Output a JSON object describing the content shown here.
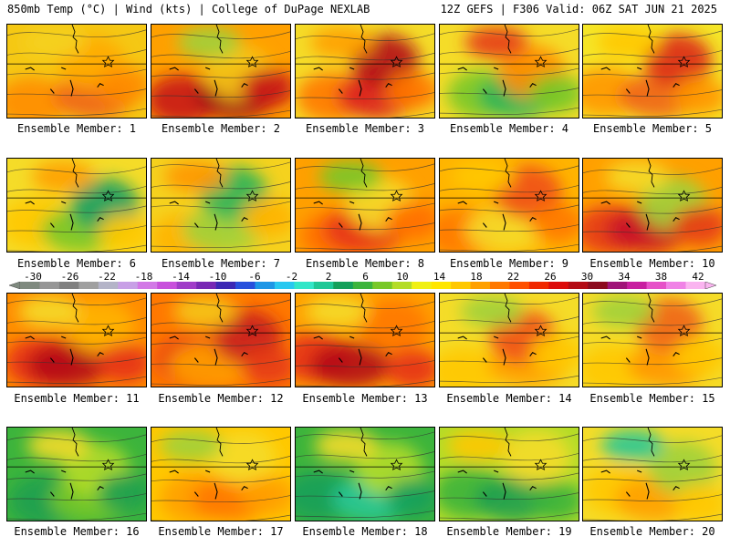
{
  "header": {
    "left": "850mb Temp (°C) | Wind (kts) | College of DuPage NEXLAB",
    "right": "12Z GEFS | F306 Valid: 06Z SAT JUN 21 2025"
  },
  "colorbar": {
    "labels": [
      "-30",
      "-26",
      "-22",
      "-18",
      "-14",
      "-10",
      "-6",
      "-2",
      "2",
      "6",
      "10",
      "14",
      "18",
      "22",
      "26",
      "30",
      "34",
      "38",
      "42"
    ],
    "colors": [
      "#7f8a7f",
      "#969696",
      "#808080",
      "#a0a0a0",
      "#b4b4c8",
      "#c8a0e6",
      "#d278e6",
      "#c850dc",
      "#a03cc8",
      "#7828b4",
      "#3c28b4",
      "#2850dc",
      "#1e96e6",
      "#28c8f0",
      "#32e6c8",
      "#1ec896",
      "#14a05a",
      "#3cb43c",
      "#78c828",
      "#b4dc28",
      "#f0f014",
      "#ffe600",
      "#ffc800",
      "#ffa000",
      "#ff7800",
      "#ff5000",
      "#f02800",
      "#dc0a0a",
      "#b40a14",
      "#8c0a1e",
      "#a01478",
      "#c81ea0",
      "#e650c8",
      "#f082e6",
      "#fab4f0"
    ]
  },
  "members": [
    {
      "caption": "Ensemble Member: 1",
      "palette": [
        "#f5c814",
        "#ff8c00",
        "#f06414",
        "#ffaa00",
        "#f5d21e"
      ]
    },
    {
      "caption": "Ensemble Member: 2",
      "palette": [
        "#ffa000",
        "#c81414",
        "#a00a14",
        "#f5c814",
        "#a0d23c"
      ]
    },
    {
      "caption": "Ensemble Member: 3",
      "palette": [
        "#f5dc28",
        "#ff7800",
        "#dc1e1e",
        "#b40a14",
        "#ffa000"
      ]
    },
    {
      "caption": "Ensemble Member: 4",
      "palette": [
        "#f5dc28",
        "#78c828",
        "#28b45a",
        "#ff8c00",
        "#e63c14"
      ]
    },
    {
      "caption": "Ensemble Member: 5",
      "palette": [
        "#f5e628",
        "#ff9600",
        "#f06414",
        "#dc2814",
        "#ffc800"
      ]
    },
    {
      "caption": "Ensemble Member: 6",
      "palette": [
        "#f5dc28",
        "#ffc800",
        "#78c828",
        "#14a064",
        "#ffa000"
      ]
    },
    {
      "caption": "Ensemble Member: 7",
      "palette": [
        "#f5d21e",
        "#ffb400",
        "#a0d23c",
        "#28b45a",
        "#ff9600"
      ]
    },
    {
      "caption": "Ensemble Member: 8",
      "palette": [
        "#ffa000",
        "#ff6e00",
        "#e63214",
        "#f5dc28",
        "#78c828"
      ]
    },
    {
      "caption": "Ensemble Member: 9",
      "palette": [
        "#ffb400",
        "#ff7800",
        "#f5dc28",
        "#f05014",
        "#ffc800"
      ]
    },
    {
      "caption": "Ensemble Member: 10",
      "palette": [
        "#ffa000",
        "#e63c14",
        "#c81428",
        "#a0d23c",
        "#f5dc28"
      ]
    },
    {
      "caption": "Ensemble Member: 11",
      "palette": [
        "#ff8c00",
        "#e63214",
        "#b40a14",
        "#ffb400",
        "#f5dc28"
      ]
    },
    {
      "caption": "Ensemble Member: 12",
      "palette": [
        "#ff7800",
        "#e63c14",
        "#ffa000",
        "#c81e1e",
        "#f5c814"
      ]
    },
    {
      "caption": "Ensemble Member: 13",
      "palette": [
        "#ffa000",
        "#e63214",
        "#b40a14",
        "#ff7800",
        "#f5dc28"
      ]
    },
    {
      "caption": "Ensemble Member: 14",
      "palette": [
        "#f5dc28",
        "#ffc800",
        "#ffa000",
        "#f05014",
        "#a0d23c"
      ]
    },
    {
      "caption": "Ensemble Member: 15",
      "palette": [
        "#f5dc28",
        "#ffc800",
        "#ff9600",
        "#f06414",
        "#a0d23c"
      ]
    },
    {
      "caption": "Ensemble Member: 16",
      "palette": [
        "#3cb43c",
        "#1ea050",
        "#78c828",
        "#b4dc28",
        "#f5dc28"
      ]
    },
    {
      "caption": "Ensemble Member: 17",
      "palette": [
        "#ffc800",
        "#ffa000",
        "#ff7800",
        "#f5dc28",
        "#a0d23c"
      ]
    },
    {
      "caption": "Ensemble Member: 18",
      "palette": [
        "#3cb43c",
        "#14a05a",
        "#28c896",
        "#b4dc28",
        "#f5dc28"
      ]
    },
    {
      "caption": "Ensemble Member: 19",
      "palette": [
        "#b4dc28",
        "#3cb43c",
        "#1ea050",
        "#f5dc28",
        "#ffc800"
      ]
    },
    {
      "caption": "Ensemble Member: 20",
      "palette": [
        "#f5dc28",
        "#ffc800",
        "#ffa000",
        "#a0d23c",
        "#28c896"
      ]
    }
  ]
}
